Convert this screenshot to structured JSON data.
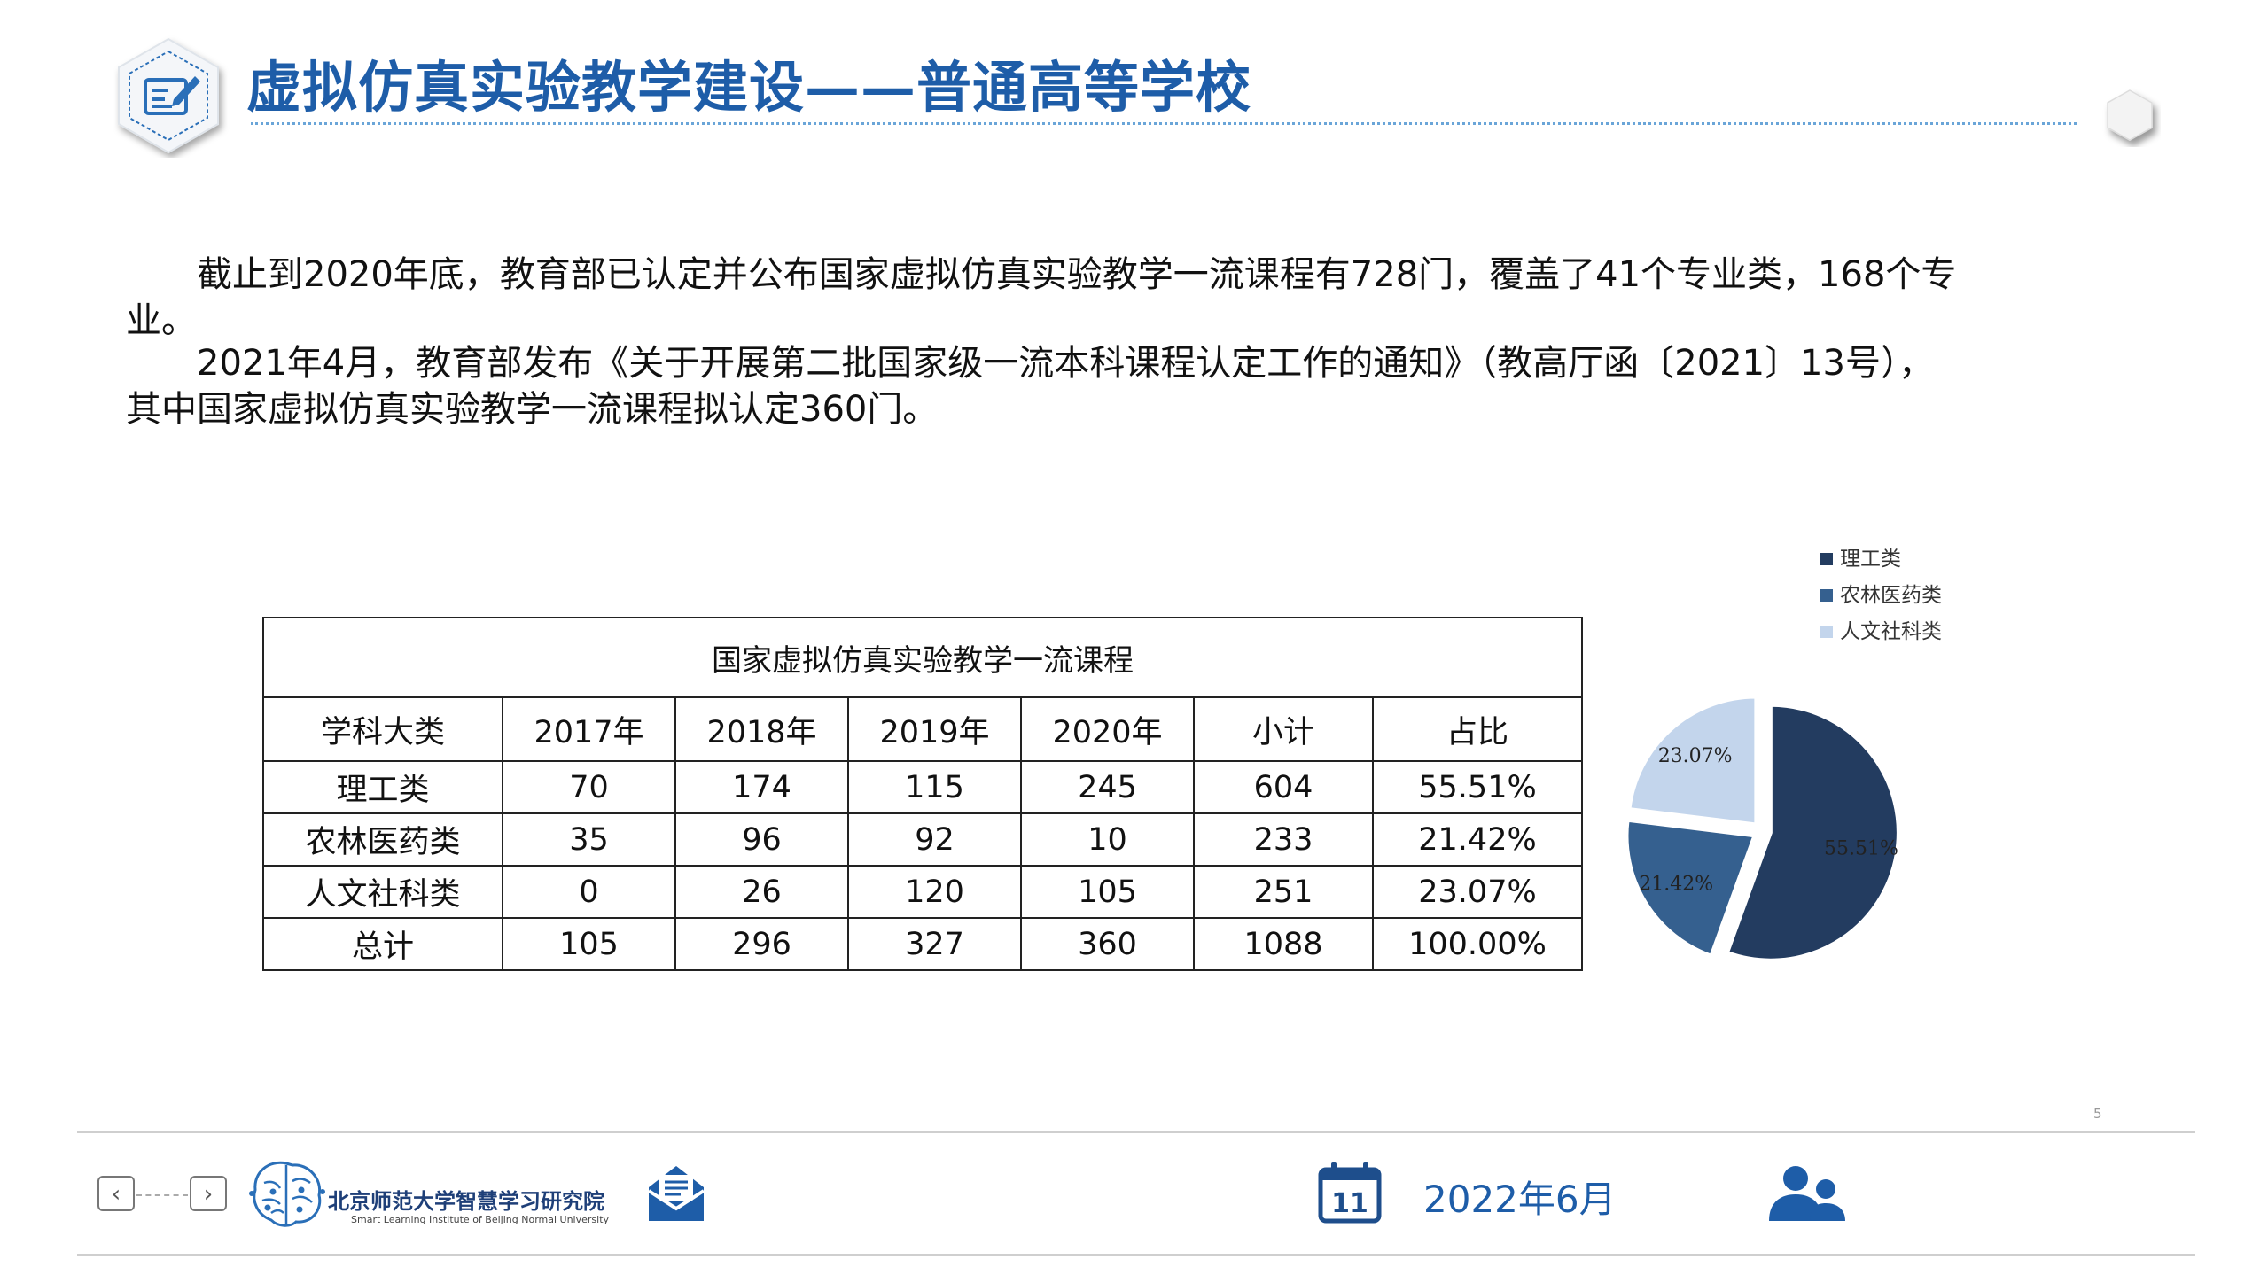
{
  "header": {
    "title": "虚拟仿真实验教学建设——普通高等学校"
  },
  "body": {
    "para1_line1": "截止到2020年底，教育部已认定并公布国家虚拟仿真实验教学一流课程有728门，覆盖了41个专业类，168个专",
    "para1_line2": "业。",
    "para2_line1": "2021年4月，教育部发布《关于开展第二批国家级一流本科课程认定工作的通知》（教高厅函〔2021〕13号），",
    "para2_line2": "其中国家虚拟仿真实验教学一流课程拟认定360门。"
  },
  "table": {
    "caption": "国家虚拟仿真实验教学一流课程",
    "headers": [
      "学科大类",
      "2017年",
      "2018年",
      "2019年",
      "2020年",
      "小计",
      "占比"
    ],
    "rows": [
      [
        "理工类",
        "70",
        "174",
        "115",
        "245",
        "604",
        "55.51%"
      ],
      [
        "农林医药类",
        "35",
        "96",
        "92",
        "10",
        "233",
        "21.42%"
      ],
      [
        "人文社科类",
        "0",
        "26",
        "120",
        "105",
        "251",
        "23.07%"
      ],
      [
        "总计",
        "105",
        "296",
        "327",
        "360",
        "1088",
        "100.00%"
      ]
    ]
  },
  "chart_data": {
    "type": "pie",
    "categories": [
      "理工类",
      "农林医药类",
      "人文社科类"
    ],
    "values": [
      55.51,
      21.42,
      23.07
    ],
    "labels": [
      "55.51%",
      "21.42%",
      "23.07%"
    ],
    "colors": [
      "#233c60",
      "#35608f",
      "#c3d5ec"
    ],
    "legend_position": "top-right",
    "title": "",
    "exploded": true
  },
  "footer": {
    "page_number": "5",
    "prev_label": "‹",
    "next_label": "›",
    "institute_name": "北京师范大学智慧学习研究院",
    "institute_name_en": "Smart Learning Institute of Beijing Normal University",
    "calendar_day": "11",
    "date": "2022年6月"
  },
  "colors": {
    "title_blue": "#1e5da8",
    "footer_navy": "#1e3f78"
  },
  "icons": {
    "title": "edit-document-icon",
    "mail": "mail-icon",
    "calendar": "calendar-icon",
    "users": "users-icon",
    "logo": "brain-logo"
  }
}
